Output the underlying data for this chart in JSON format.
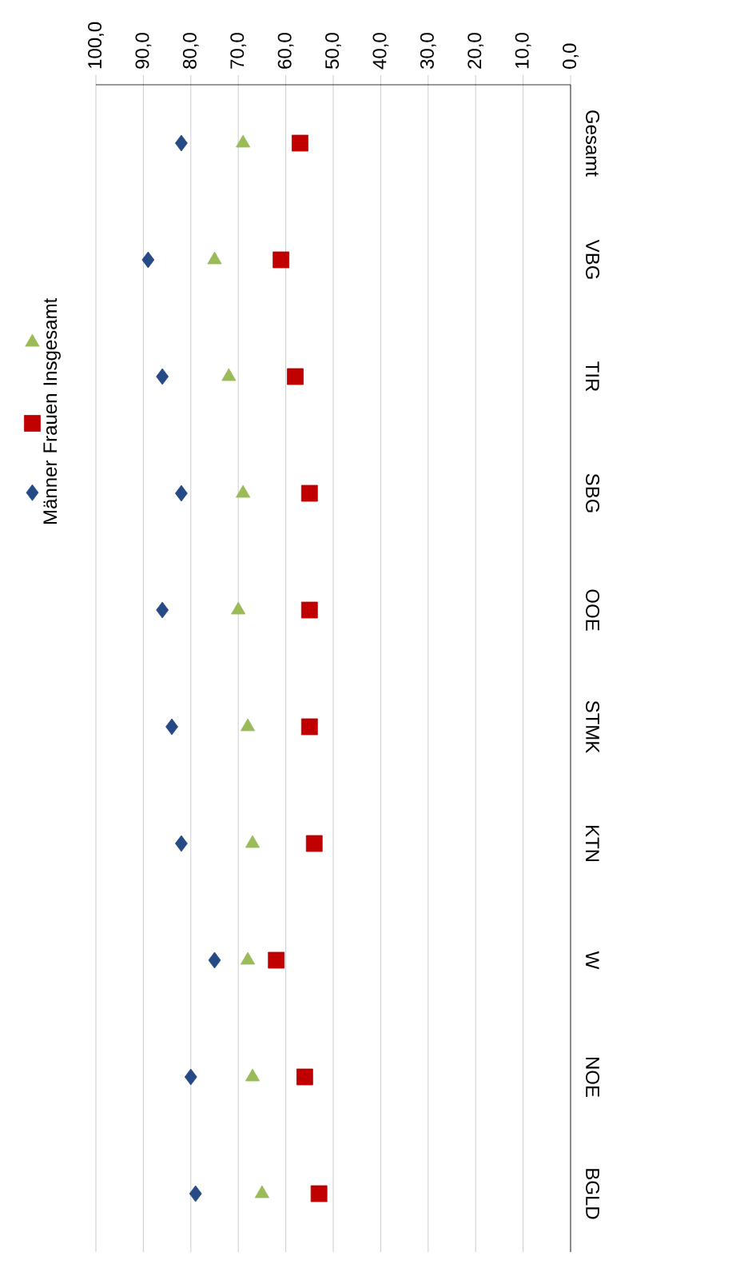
{
  "chart_data": {
    "type": "scatter",
    "orientation": "horizontal",
    "categories": [
      "Gesamt",
      "VBG",
      "TIR",
      "SBG",
      "OOE",
      "STMK",
      "KTN",
      "W",
      "NOE",
      "BGLD"
    ],
    "series": [
      {
        "name": "Männer",
        "color": "#264a85",
        "marker": "diamond",
        "values": [
          82,
          89,
          86,
          82,
          86,
          84,
          82,
          75,
          80,
          79
        ]
      },
      {
        "name": "Frauen",
        "color": "#c00000",
        "marker": "square",
        "values": [
          57,
          61,
          58,
          55,
          55,
          55,
          54,
          62,
          56,
          53
        ]
      },
      {
        "name": "Insgesamt",
        "color": "#9bbb59",
        "marker": "triangle",
        "values": [
          69,
          75,
          72,
          69,
          70,
          68,
          67,
          68,
          67,
          65
        ]
      }
    ],
    "xlim": [
      100,
      0
    ],
    "xticks": [
      {
        "value": 100,
        "label": "100,0"
      },
      {
        "value": 90,
        "label": "90,0"
      },
      {
        "value": 80,
        "label": "80,0"
      },
      {
        "value": 70,
        "label": "70,0"
      },
      {
        "value": 60,
        "label": "60,0"
      },
      {
        "value": 50,
        "label": "50,0"
      },
      {
        "value": 40,
        "label": "40,0"
      },
      {
        "value": 30,
        "label": "30,0"
      },
      {
        "value": 20,
        "label": "20,0"
      },
      {
        "value": 10,
        "label": "10,0"
      },
      {
        "value": 0,
        "label": "0,0"
      }
    ],
    "grid": "x",
    "legend": "left"
  }
}
